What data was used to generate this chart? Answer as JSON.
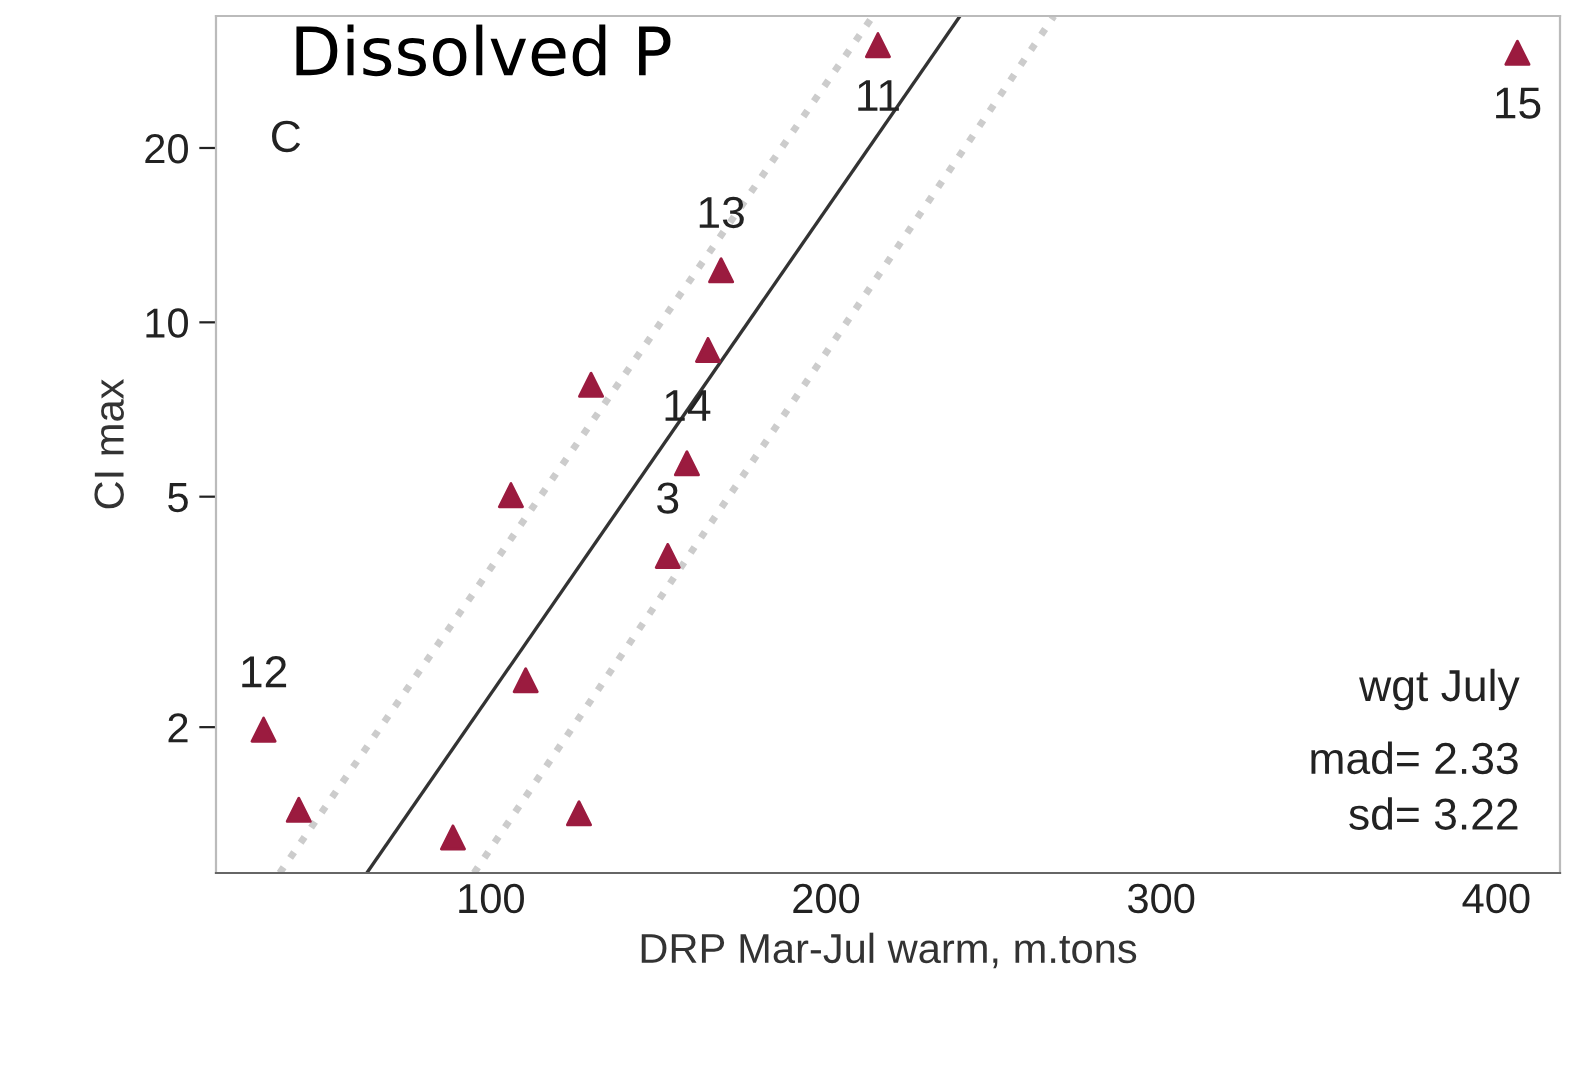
{
  "chart_data": {
    "type": "scatter",
    "title": "Dissolved P",
    "xlabel": "DRP Mar-Jul warm, m.tons",
    "ylabel": "CI max",
    "log": "y",
    "xlim": [
      18,
      419
    ],
    "ylim": [
      1.12,
      33.8
    ],
    "xticks": [
      100,
      200,
      300,
      400
    ],
    "yticks": [
      2,
      5,
      10,
      20
    ],
    "grid": false,
    "series": [
      {
        "marker": "triangle",
        "color": "#9b1b3f",
        "x": [
          215.5,
          406.3,
          168.7,
          164.8,
          129.9,
          158.5,
          106,
          152.8,
          110.4,
          32.2,
          42.7,
          88.7,
          126.3
        ],
        "values": [
          30.1,
          29.2,
          12.3,
          8.96,
          7.8,
          5.71,
          5.03,
          3.95,
          2.41,
          1.98,
          1.44,
          1.29,
          1.42
        ]
      },
      {
        "type": "line",
        "marker": "none",
        "color": "#333333",
        "line_style": "solid",
        "x": [
          63,
          240
        ],
        "values": [
          1.12,
          33.8
        ]
      },
      {
        "type": "line",
        "marker": "none",
        "color": "#cccccc",
        "line_style": "dotted",
        "x": [
          37,
          214
        ],
        "values": [
          1.12,
          33.8
        ]
      },
      {
        "type": "line",
        "marker": "none",
        "color": "#cccccc",
        "line_style": "dotted",
        "x": [
          95,
          268
        ],
        "values": [
          1.12,
          33.8
        ]
      }
    ],
    "annotations": [
      "C",
      "wgt July",
      "mad= 2.33",
      "sd= 3.22",
      {
        "text": "11",
        "x": 215.5,
        "y": 30.1
      },
      {
        "text": "15",
        "x": 406.3,
        "y": 29.2
      },
      {
        "text": "13",
        "x": 168.7,
        "y": 12.3
      },
      {
        "text": "14",
        "x": 158.5,
        "y": 5.71
      },
      {
        "text": "3",
        "x": 152.8,
        "y": 3.95
      },
      {
        "text": "12",
        "x": 32.2,
        "y": 1.98
      }
    ]
  }
}
